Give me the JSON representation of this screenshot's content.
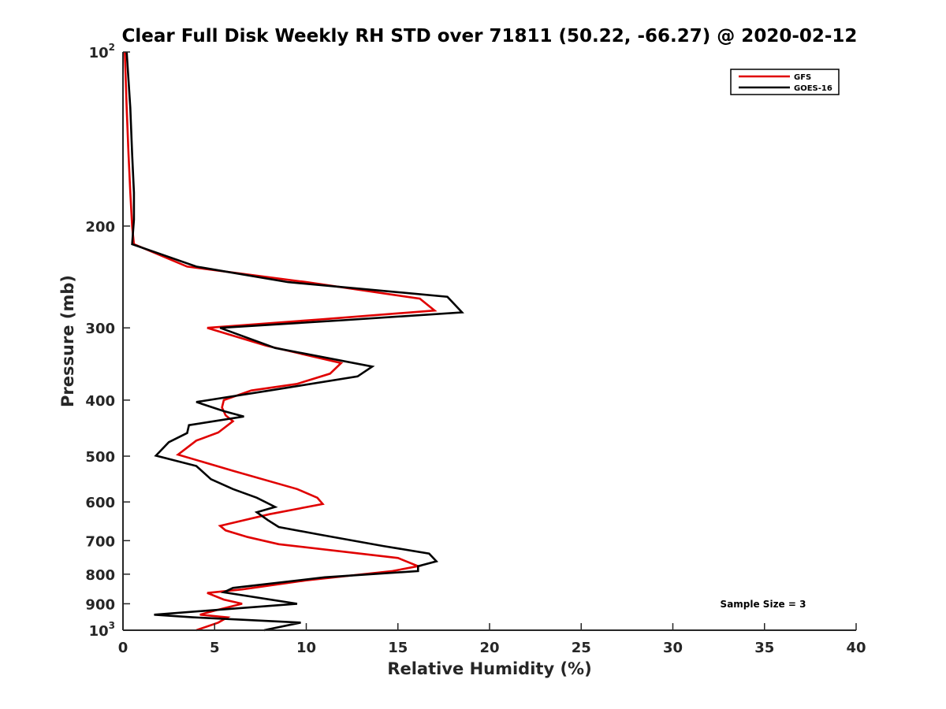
{
  "chart_data": {
    "type": "line",
    "title": "Clear Full Disk Weekly RH STD over 71811 (50.22, -66.27) @ 2020-02-12",
    "xlabel": "Relative Humidity (%)",
    "ylabel": "Pressure (mb)",
    "xlim": [
      0,
      40
    ],
    "ylim": [
      100,
      1000
    ],
    "yscale": "log",
    "y_reversed": true,
    "x_ticks": [
      0,
      5,
      10,
      15,
      20,
      25,
      30,
      35,
      40
    ],
    "x_tick_labels": [
      "0",
      "5",
      "10",
      "15",
      "20",
      "25",
      "30",
      "35",
      "40"
    ],
    "y_ticks": [
      {
        "value": 100,
        "base": "10",
        "sup": "2"
      },
      {
        "value": 200,
        "base": "200",
        "sup": ""
      },
      {
        "value": 300,
        "base": "300",
        "sup": ""
      },
      {
        "value": 400,
        "base": "400",
        "sup": ""
      },
      {
        "value": 500,
        "base": "500",
        "sup": ""
      },
      {
        "value": 600,
        "base": "600",
        "sup": ""
      },
      {
        "value": 700,
        "base": "700",
        "sup": ""
      },
      {
        "value": 800,
        "base": "800",
        "sup": ""
      },
      {
        "value": 900,
        "base": "900",
        "sup": ""
      },
      {
        "value": 1000,
        "base": "10",
        "sup": "3"
      }
    ],
    "grid": false,
    "legend_position": "top-right",
    "annotation": "Sample Size = 3",
    "series": [
      {
        "name": "GFS",
        "color": "#e00000",
        "points": [
          [
            0.1,
            100
          ],
          [
            0.2,
            125
          ],
          [
            0.3,
            150
          ],
          [
            0.4,
            175
          ],
          [
            0.5,
            200
          ],
          [
            0.6,
            215
          ],
          [
            3.5,
            235
          ],
          [
            10.0,
            250
          ],
          [
            16.2,
            267
          ],
          [
            17.0,
            280
          ],
          [
            10.8,
            290
          ],
          [
            4.6,
            300
          ],
          [
            7.8,
            322
          ],
          [
            11.9,
            345
          ],
          [
            11.3,
            360
          ],
          [
            9.5,
            375
          ],
          [
            7.0,
            385
          ],
          [
            5.5,
            400
          ],
          [
            5.4,
            412
          ],
          [
            5.6,
            425
          ],
          [
            6.0,
            435
          ],
          [
            5.2,
            455
          ],
          [
            4.0,
            470
          ],
          [
            3.0,
            497
          ],
          [
            6.0,
            530
          ],
          [
            9.5,
            570
          ],
          [
            10.6,
            590
          ],
          [
            10.9,
            605
          ],
          [
            8.0,
            630
          ],
          [
            5.3,
            660
          ],
          [
            5.6,
            672
          ],
          [
            6.8,
            690
          ],
          [
            8.5,
            710
          ],
          [
            15.0,
            750
          ],
          [
            16.1,
            775
          ],
          [
            14.7,
            790
          ],
          [
            10.0,
            820
          ],
          [
            6.5,
            850
          ],
          [
            4.6,
            862
          ],
          [
            5.5,
            885
          ],
          [
            6.5,
            900
          ],
          [
            5.0,
            925
          ],
          [
            4.2,
            940
          ],
          [
            5.7,
            950
          ],
          [
            5.2,
            970
          ],
          [
            4.0,
            1000
          ]
        ]
      },
      {
        "name": "GOES-16",
        "color": "#000000",
        "points": [
          [
            0.2,
            100
          ],
          [
            0.4,
            125
          ],
          [
            0.5,
            150
          ],
          [
            0.6,
            175
          ],
          [
            0.6,
            195
          ],
          [
            0.5,
            215
          ],
          [
            4.0,
            235
          ],
          [
            9.0,
            250
          ],
          [
            17.7,
            265
          ],
          [
            18.5,
            282
          ],
          [
            12.0,
            291
          ],
          [
            5.3,
            300
          ],
          [
            8.3,
            325
          ],
          [
            13.6,
            350
          ],
          [
            12.8,
            364
          ],
          [
            8.0,
            385
          ],
          [
            4.0,
            403
          ],
          [
            5.5,
            418
          ],
          [
            6.6,
            427
          ],
          [
            3.6,
            442
          ],
          [
            3.5,
            456
          ],
          [
            2.5,
            473
          ],
          [
            1.8,
            499
          ],
          [
            4.0,
            520
          ],
          [
            4.8,
            548
          ],
          [
            6.0,
            570
          ],
          [
            7.3,
            590
          ],
          [
            8.3,
            612
          ],
          [
            7.3,
            625
          ],
          [
            7.9,
            645
          ],
          [
            8.5,
            663
          ],
          [
            10.7,
            683
          ],
          [
            14.2,
            715
          ],
          [
            16.7,
            737
          ],
          [
            17.1,
            760
          ],
          [
            16.1,
            775
          ],
          [
            16.1,
            790
          ],
          [
            11.0,
            810
          ],
          [
            6.0,
            845
          ],
          [
            5.5,
            860
          ],
          [
            9.5,
            900
          ],
          [
            1.7,
            940
          ],
          [
            3.8,
            950
          ],
          [
            9.7,
            970
          ],
          [
            7.7,
            1000
          ]
        ]
      }
    ]
  }
}
